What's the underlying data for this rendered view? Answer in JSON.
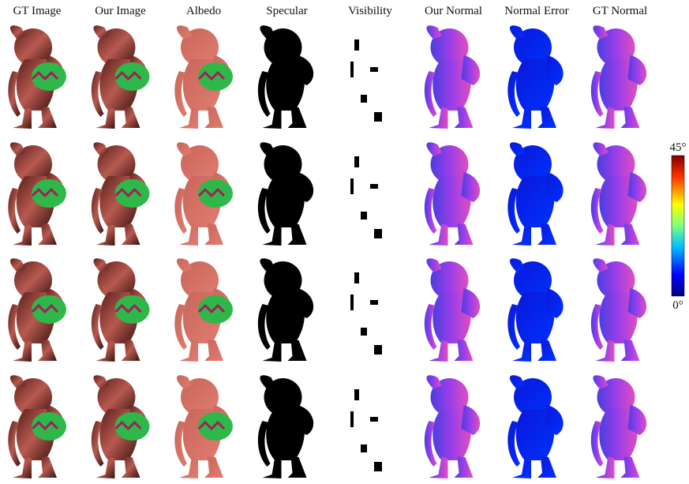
{
  "columns": [
    "GT Image",
    "Our Image",
    "Albedo",
    "Specular",
    "Visibility",
    "Our Normal",
    "Normal Error",
    "GT Normal"
  ],
  "colorbar": {
    "max_label": "45°",
    "min_label": "0°"
  }
}
